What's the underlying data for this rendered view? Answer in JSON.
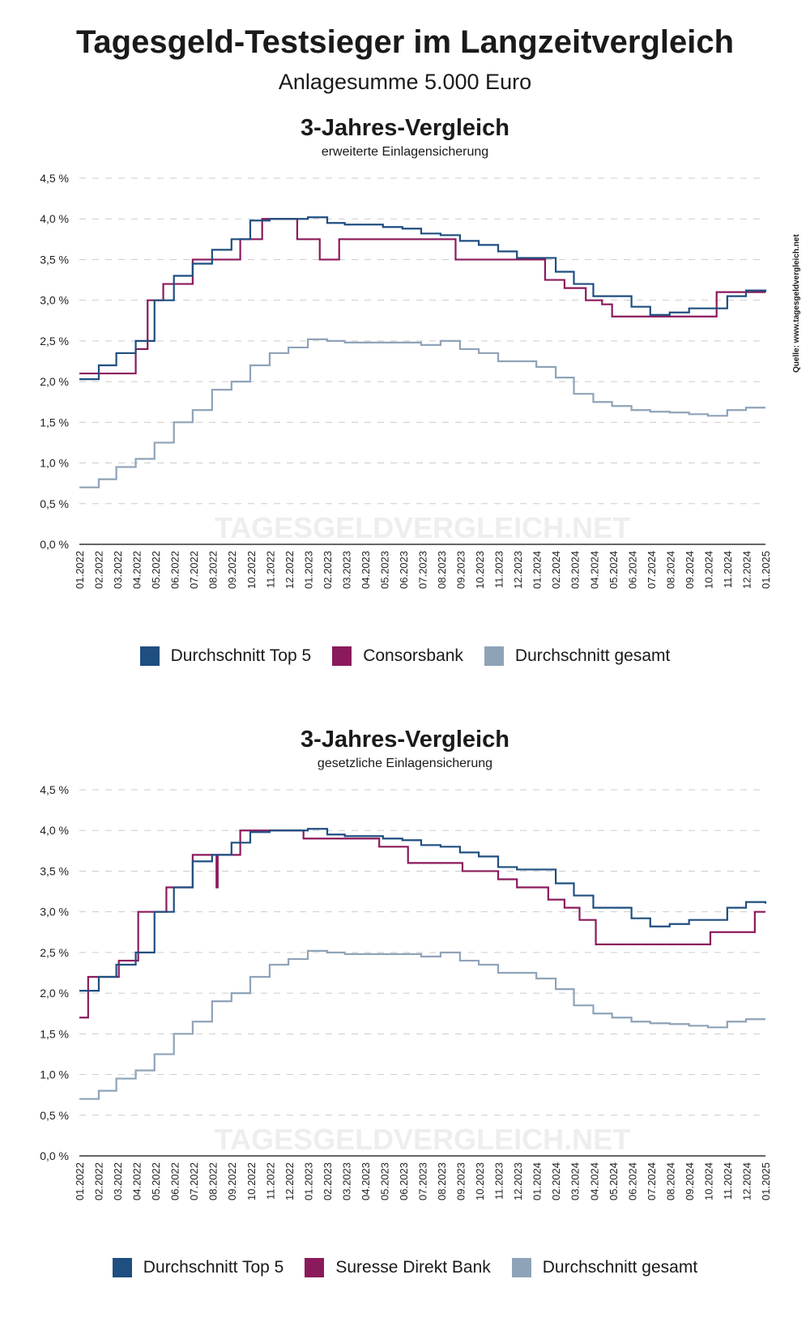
{
  "title": "Tagesgeld-Testsieger im Langzeitvergleich",
  "subtitle": "Anlagesumme 5.000 Euro",
  "source": "Quelle: www.tagesgeldvergleich.net",
  "watermark": "TAGESGELDVERGLEICH.NET",
  "colors": {
    "top5": "#1f4e80",
    "bank": "#8b1a5c",
    "gesamt": "#8fa3b8",
    "grid": "#cccccc",
    "axis": "#333333"
  },
  "chart_data": [
    {
      "type": "line",
      "title": "3-Jahres-Vergleich",
      "subtitle": "erweiterte Einlagensicherung",
      "ylim": [
        0,
        4.5
      ],
      "yticks": [
        "0,0 %",
        "0,5 %",
        "1,0 %",
        "1,5 %",
        "2,0 %",
        "2,5 %",
        "3,0 %",
        "3,5 %",
        "4,0 %",
        "4,5 %"
      ],
      "xticks": [
        "01.2022",
        "02.2022",
        "03.2022",
        "04.2022",
        "05.2022",
        "06.2022",
        "07.2022",
        "08.2022",
        "09.2022",
        "10.2022",
        "11.2022",
        "12.2022",
        "01.2023",
        "02.2023",
        "03.2023",
        "04.2023",
        "05.2023",
        "06.2023",
        "07.2023",
        "08.2023",
        "09.2023",
        "10.2023",
        "11.2023",
        "12.2023",
        "01.2024",
        "02.2024",
        "03.2024",
        "04.2024",
        "05.2024",
        "06.2024",
        "07.2024",
        "08.2024",
        "09.2024",
        "10.2024",
        "11.2024",
        "12.2024",
        "01.2025"
      ],
      "grid": "horizontal dashed",
      "legend_position": "bottom",
      "series": [
        {
          "name": "Durchschnitt Top 5",
          "color": "#1f4e80",
          "step": true,
          "x": [
            "2022-01",
            "2022-02",
            "2022-03",
            "2022-04",
            "2022-05",
            "2022-06",
            "2022-07",
            "2022-08",
            "2022-09",
            "2022-10",
            "2022-11",
            "2022-12",
            "2023-01",
            "2023-02",
            "2023-03",
            "2023-04",
            "2023-05",
            "2023-06",
            "2023-07",
            "2023-08",
            "2023-09",
            "2023-10",
            "2023-11",
            "2023-12",
            "2024-01",
            "2024-02",
            "2024-03",
            "2024-04",
            "2024-05",
            "2024-06",
            "2024-07",
            "2024-08",
            "2024-09",
            "2024-10",
            "2024-11",
            "2024-12",
            "2025-01"
          ],
          "values": [
            2.03,
            2.2,
            2.35,
            2.5,
            3.0,
            3.3,
            3.45,
            3.62,
            3.75,
            3.98,
            4.0,
            4.0,
            4.02,
            3.95,
            3.93,
            3.93,
            3.9,
            3.88,
            3.82,
            3.8,
            3.73,
            3.68,
            3.6,
            3.52,
            3.52,
            3.35,
            3.2,
            3.05,
            3.05,
            2.92,
            2.82,
            2.85,
            2.9,
            2.9,
            3.05,
            3.12,
            3.1
          ]
        },
        {
          "name": "Consorsbank",
          "color": "#8b1a5c",
          "step": true,
          "x": [
            "2022-01-01",
            "2022-04-01",
            "2022-04-20",
            "2022-05-15",
            "2022-07-01",
            "2022-09-15",
            "2022-10-20",
            "2022-12-15",
            "2023-01-20",
            "2023-02-20",
            "2023-08-25",
            "2024-01-15",
            "2024-02-15",
            "2024-03-20",
            "2024-04-15",
            "2024-05-01",
            "2024-10-15",
            "2025-01-01"
          ],
          "values": [
            2.1,
            2.4,
            3.0,
            3.2,
            3.5,
            3.75,
            4.0,
            3.75,
            3.5,
            3.75,
            3.5,
            3.25,
            3.15,
            3.0,
            2.95,
            2.8,
            3.1,
            3.1
          ]
        },
        {
          "name": "Durchschnitt gesamt",
          "color": "#8fa3b8",
          "step": true,
          "x": [
            "2022-01",
            "2022-02",
            "2022-03",
            "2022-04",
            "2022-05",
            "2022-06",
            "2022-07",
            "2022-08",
            "2022-09",
            "2022-10",
            "2022-11",
            "2022-12",
            "2023-01",
            "2023-02",
            "2023-03",
            "2023-04",
            "2023-05",
            "2023-06",
            "2023-07",
            "2023-08",
            "2023-09",
            "2023-10",
            "2023-11",
            "2023-12",
            "2024-01",
            "2024-02",
            "2024-03",
            "2024-04",
            "2024-05",
            "2024-06",
            "2024-07",
            "2024-08",
            "2024-09",
            "2024-10",
            "2024-11",
            "2024-12",
            "2025-01"
          ],
          "values": [
            0.7,
            0.8,
            0.95,
            1.05,
            1.25,
            1.5,
            1.65,
            1.9,
            2.0,
            2.2,
            2.35,
            2.42,
            2.52,
            2.5,
            2.48,
            2.48,
            2.48,
            2.48,
            2.45,
            2.5,
            2.4,
            2.35,
            2.25,
            2.25,
            2.18,
            2.05,
            1.85,
            1.75,
            1.7,
            1.65,
            1.63,
            1.62,
            1.6,
            1.58,
            1.65,
            1.68,
            1.68
          ]
        }
      ]
    },
    {
      "type": "line",
      "title": "3-Jahres-Vergleich",
      "subtitle": "gesetzliche Einlagensicherung",
      "ylim": [
        0,
        4.5
      ],
      "yticks": [
        "0,0 %",
        "0,5 %",
        "1,0 %",
        "1,5 %",
        "2,0 %",
        "2,5 %",
        "3,0 %",
        "3,5 %",
        "4,0 %",
        "4,5 %"
      ],
      "xticks": [
        "01.2022",
        "02.2022",
        "03.2022",
        "04.2022",
        "05.2022",
        "06.2022",
        "07.2022",
        "08.2022",
        "09.2022",
        "10.2022",
        "11.2022",
        "12.2022",
        "01.2023",
        "02.2023",
        "03.2023",
        "04.2023",
        "05.2023",
        "06.2023",
        "07.2023",
        "08.2023",
        "09.2023",
        "10.2023",
        "11.2023",
        "12.2023",
        "01.2024",
        "02.2024",
        "03.2024",
        "04.2024",
        "05.2024",
        "06.2024",
        "07.2024",
        "08.2024",
        "09.2024",
        "10.2024",
        "11.2024",
        "12.2024",
        "01.2025"
      ],
      "grid": "horizontal dashed",
      "legend_position": "bottom",
      "series": [
        {
          "name": "Durchschnitt Top 5",
          "color": "#1f4e80",
          "step": true,
          "x": [
            "2022-01",
            "2022-02",
            "2022-03",
            "2022-04",
            "2022-05",
            "2022-06",
            "2022-07",
            "2022-08",
            "2022-09",
            "2022-10",
            "2022-11",
            "2022-12",
            "2023-01",
            "2023-02",
            "2023-03",
            "2023-04",
            "2023-05",
            "2023-06",
            "2023-07",
            "2023-08",
            "2023-09",
            "2023-10",
            "2023-11",
            "2023-12",
            "2024-01",
            "2024-02",
            "2024-03",
            "2024-04",
            "2024-05",
            "2024-06",
            "2024-07",
            "2024-08",
            "2024-09",
            "2024-10",
            "2024-11",
            "2024-12",
            "2025-01"
          ],
          "values": [
            2.03,
            2.2,
            2.35,
            2.5,
            3.0,
            3.3,
            3.62,
            3.7,
            3.85,
            3.98,
            4.0,
            4.0,
            4.02,
            3.95,
            3.93,
            3.93,
            3.9,
            3.88,
            3.82,
            3.8,
            3.73,
            3.68,
            3.55,
            3.52,
            3.52,
            3.35,
            3.2,
            3.05,
            3.05,
            2.92,
            2.82,
            2.85,
            2.9,
            2.9,
            3.05,
            3.12,
            3.1
          ]
        },
        {
          "name": "Suresse Direkt Bank",
          "color": "#8b1a5c",
          "step": true,
          "x": [
            "2022-01-01",
            "2022-01-15",
            "2022-03-05",
            "2022-04-05",
            "2022-05-20",
            "2022-07-01",
            "2022-08-08",
            "2022-08-10",
            "2022-09-15",
            "2022-12-25",
            "2023-04-25",
            "2023-06-10",
            "2023-09-05",
            "2023-11-01",
            "2023-12-01",
            "2024-01-20",
            "2024-02-15",
            "2024-03-10",
            "2024-04-05",
            "2024-10-05",
            "2024-12-15",
            "2025-01-01"
          ],
          "values": [
            1.7,
            2.2,
            2.4,
            3.0,
            3.3,
            3.7,
            3.3,
            3.7,
            4.0,
            3.9,
            3.8,
            3.6,
            3.5,
            3.4,
            3.3,
            3.15,
            3.05,
            2.9,
            2.6,
            2.75,
            3.0,
            3.0
          ]
        },
        {
          "name": "Durchschnitt gesamt",
          "color": "#8fa3b8",
          "step": true,
          "x": [
            "2022-01",
            "2022-02",
            "2022-03",
            "2022-04",
            "2022-05",
            "2022-06",
            "2022-07",
            "2022-08",
            "2022-09",
            "2022-10",
            "2022-11",
            "2022-12",
            "2023-01",
            "2023-02",
            "2023-03",
            "2023-04",
            "2023-05",
            "2023-06",
            "2023-07",
            "2023-08",
            "2023-09",
            "2023-10",
            "2023-11",
            "2023-12",
            "2024-01",
            "2024-02",
            "2024-03",
            "2024-04",
            "2024-05",
            "2024-06",
            "2024-07",
            "2024-08",
            "2024-09",
            "2024-10",
            "2024-11",
            "2024-12",
            "2025-01"
          ],
          "values": [
            0.7,
            0.8,
            0.95,
            1.05,
            1.25,
            1.5,
            1.65,
            1.9,
            2.0,
            2.2,
            2.35,
            2.42,
            2.52,
            2.5,
            2.48,
            2.48,
            2.48,
            2.48,
            2.45,
            2.5,
            2.4,
            2.35,
            2.25,
            2.25,
            2.18,
            2.05,
            1.85,
            1.75,
            1.7,
            1.65,
            1.63,
            1.62,
            1.6,
            1.58,
            1.65,
            1.68,
            1.68
          ]
        }
      ]
    }
  ]
}
